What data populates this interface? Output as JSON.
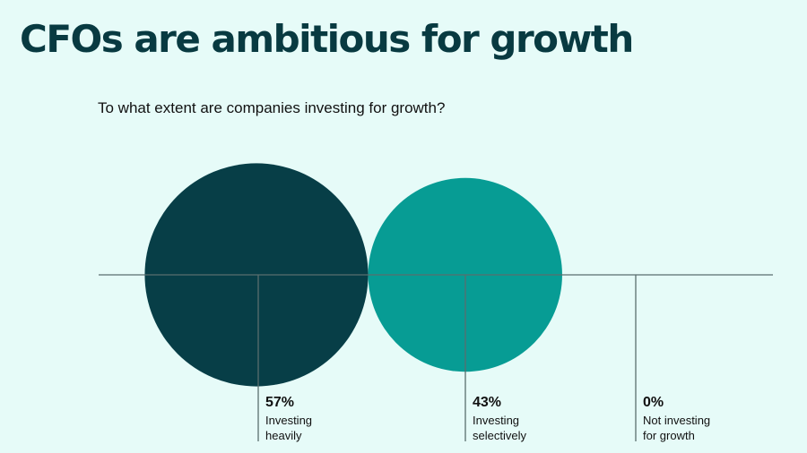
{
  "title": "CFOs are ambitious for growth",
  "subtitle": "To what extent are companies investing for growth?",
  "colors": {
    "background": "#e6fbf8",
    "text": "#083a41",
    "baseline": "#5a6e6e",
    "investing_heavily": "#073e47",
    "investing_selectively": "#079c94"
  },
  "chart_data": {
    "type": "bubble",
    "title": "To what extent are companies investing for growth?",
    "categories": [
      "Investing heavily",
      "Investing selectively",
      "Not investing for growth"
    ],
    "values": [
      57,
      43,
      0
    ],
    "unit": "%",
    "series": [
      {
        "value": 57,
        "value_label": "57%",
        "label_lines": [
          "Investing",
          "heavily"
        ],
        "color": "#073e47"
      },
      {
        "value": 43,
        "value_label": "43%",
        "label_lines": [
          "Investing",
          "selectively"
        ],
        "color": "#079c94"
      },
      {
        "value": 0,
        "value_label": "0%",
        "label_lines": [
          "Not investing",
          "for growth"
        ],
        "color": "#079c94"
      }
    ]
  }
}
